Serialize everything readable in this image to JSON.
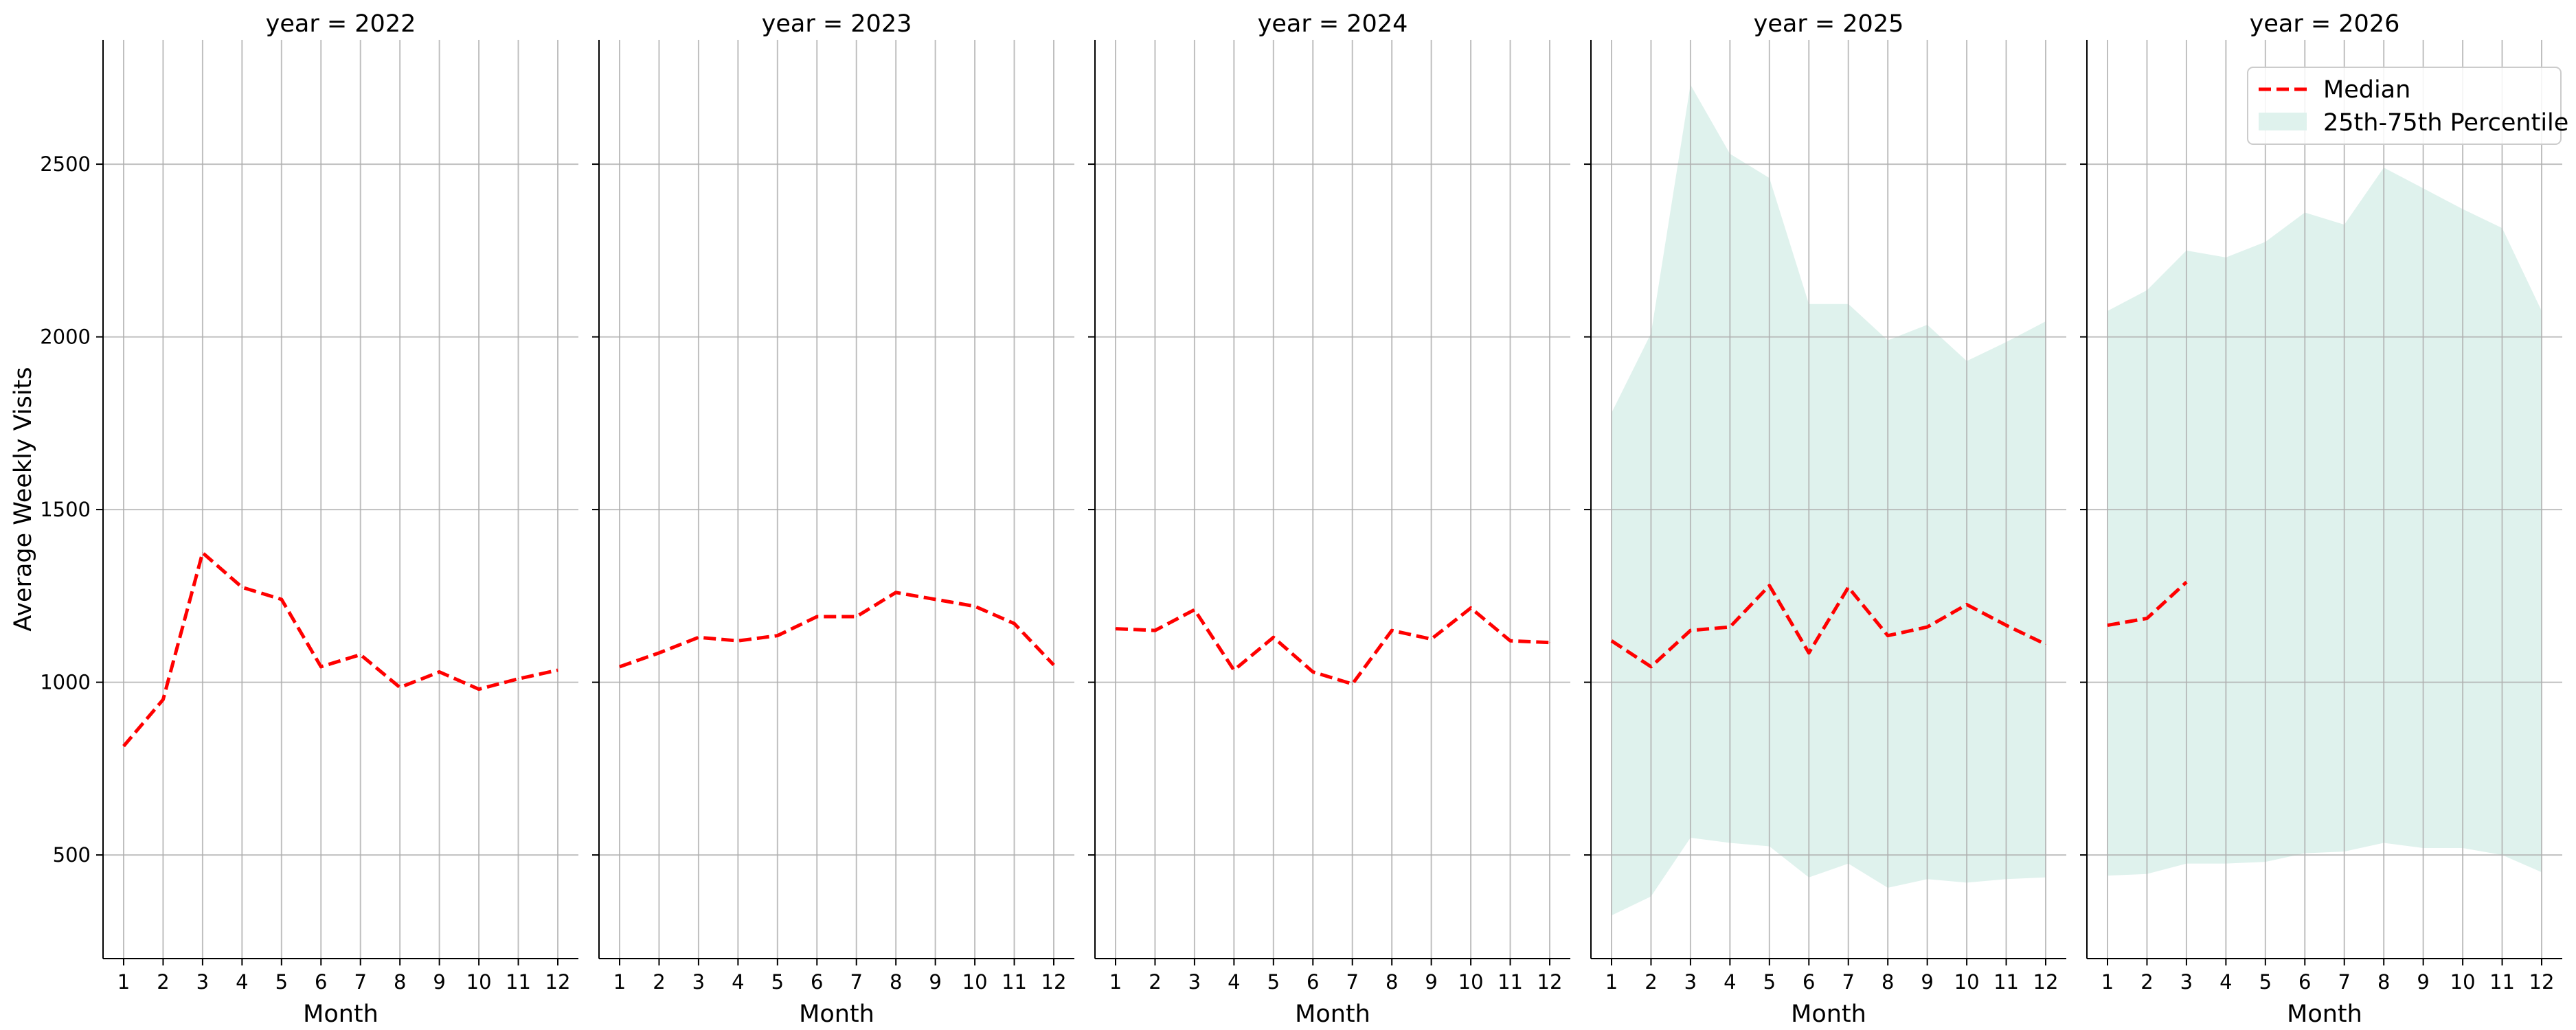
{
  "chart_data": {
    "type": "line",
    "layout": "facet-columns",
    "ylabel": "Average Weekly Visits",
    "ylim": [
      200,
      2860
    ],
    "yticks": [
      500,
      1000,
      1500,
      2000,
      2500
    ],
    "xticks": [
      1,
      2,
      3,
      4,
      5,
      6,
      7,
      8,
      9,
      10,
      11,
      12
    ],
    "grid": true,
    "legend": {
      "placement": "top-right of last panel",
      "entries": [
        {
          "name": "Median",
          "color": "#ff0000",
          "style": "dashed"
        },
        {
          "name": "25th-75th Percentile",
          "color": "#dff2ed",
          "style": "band"
        }
      ]
    },
    "facets": [
      {
        "title": "year = 2022",
        "xlabel": "Month",
        "median": {
          "x": [
            1,
            2,
            3,
            4,
            5,
            6,
            7,
            8,
            9,
            10,
            11,
            12
          ],
          "y": [
            815,
            950,
            1375,
            1275,
            1240,
            1045,
            1080,
            985,
            1030,
            980,
            1010,
            1035
          ]
        },
        "band": null
      },
      {
        "title": "year = 2023",
        "xlabel": "Month",
        "median": {
          "x": [
            1,
            2,
            3,
            4,
            5,
            6,
            7,
            8,
            9,
            10,
            11,
            12
          ],
          "y": [
            1045,
            1085,
            1130,
            1120,
            1135,
            1190,
            1190,
            1260,
            1240,
            1220,
            1170,
            1050
          ]
        },
        "band": null
      },
      {
        "title": "year = 2024",
        "xlabel": "Month",
        "median": {
          "x": [
            1,
            2,
            3,
            4,
            5,
            6,
            7,
            8,
            9,
            10,
            11,
            12
          ],
          "y": [
            1155,
            1150,
            1210,
            1035,
            1130,
            1030,
            995,
            1150,
            1125,
            1215,
            1120,
            1115
          ]
        },
        "band": null
      },
      {
        "title": "year = 2025",
        "xlabel": "Month",
        "median": {
          "x": [
            1,
            2,
            3,
            4,
            5,
            6,
            7,
            8,
            9,
            10,
            11,
            12
          ],
          "y": [
            1120,
            1045,
            1150,
            1160,
            1280,
            1085,
            1275,
            1135,
            1160,
            1225,
            1165,
            1110
          ]
        },
        "band": {
          "x": [
            1,
            2,
            3,
            4,
            5,
            6,
            7,
            8,
            9,
            10,
            11,
            12
          ],
          "lower": [
            325,
            380,
            550,
            535,
            525,
            435,
            475,
            405,
            430,
            420,
            430,
            435
          ],
          "upper": [
            1780,
            2010,
            2730,
            2530,
            2460,
            2095,
            2095,
            1990,
            2035,
            1930,
            1985,
            2045
          ]
        }
      },
      {
        "title": "year = 2026",
        "xlabel": "Month",
        "median": {
          "x": [
            1,
            2,
            3
          ],
          "y": [
            1165,
            1185,
            1290
          ]
        },
        "band": {
          "x": [
            1,
            2,
            3,
            4,
            5,
            6,
            7,
            8,
            9,
            10,
            11,
            12
          ],
          "lower": [
            440,
            445,
            475,
            475,
            480,
            505,
            510,
            535,
            520,
            520,
            500,
            450
          ],
          "upper": [
            2075,
            2135,
            2250,
            2230,
            2275,
            2360,
            2325,
            2490,
            2430,
            2370,
            2315,
            2075
          ]
        }
      }
    ]
  }
}
